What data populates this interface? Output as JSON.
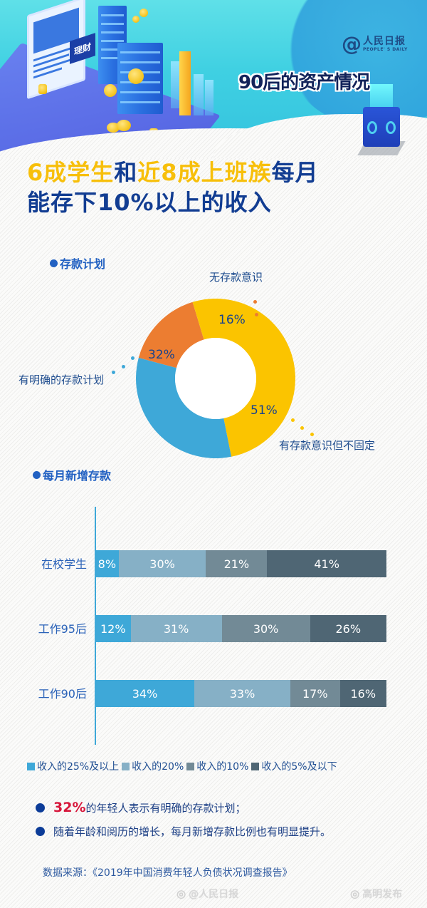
{
  "header": {
    "logo_text_cn": "人民日报",
    "logo_text_en": "PEOPLE' S DAILY",
    "logo_symbol": "@",
    "banner_title": "90后的资产情况",
    "illustration_sign": "理财",
    "colors": {
      "sky": "#3fd0e2",
      "platform": "#5b66e6",
      "title": "#12235a"
    }
  },
  "headline": {
    "line1": [
      {
        "text": "6成学生",
        "color": "yellow"
      },
      {
        "text": "和",
        "color": "blue"
      },
      {
        "text": "近8成上班族",
        "color": "yellow"
      },
      {
        "text": "每月",
        "color": "blue"
      }
    ],
    "line2": "能存下10%以上的收入"
  },
  "sections": {
    "plan_title": "存款计划",
    "monthly_title": "每月新增存款"
  },
  "chart_data": [
    {
      "type": "pie",
      "title": "存款计划",
      "donut": true,
      "categories": [
        "无存款意识",
        "有存款意识但不固定",
        "有明确的存款计划"
      ],
      "values": [
        16,
        51,
        32
      ],
      "labels": [
        "16%",
        "51%",
        "32%"
      ],
      "colors": [
        "#ec7d31",
        "#fbc400",
        "#3ea8d8"
      ]
    },
    {
      "type": "bar",
      "orientation": "horizontal",
      "stacked": true,
      "title": "每月新增存款",
      "categories": [
        "在校学生",
        "工作95后",
        "工作90后"
      ],
      "series": [
        {
          "name": "收入的25%及以上",
          "color": "#3ea8d8",
          "values": [
            8,
            12,
            34
          ]
        },
        {
          "name": "收入的20%",
          "color": "#86b0c6",
          "values": [
            30,
            31,
            33
          ]
        },
        {
          "name": "收入的10%",
          "color": "#728a96",
          "values": [
            21,
            30,
            17
          ]
        },
        {
          "name": "收入的5%及以下",
          "color": "#4f6674",
          "values": [
            41,
            26,
            16
          ]
        }
      ],
      "xlim": [
        0,
        100
      ],
      "legend_position": "bottom"
    }
  ],
  "donut_labels": {
    "top": "无存款意识",
    "left": "有明确的存款计划",
    "right": "有存款意识但不固定"
  },
  "bar_chart": {
    "rows": [
      {
        "label": "在校学生",
        "cells": [
          "8%",
          "30%",
          "21%",
          "41%"
        ]
      },
      {
        "label": "工作95后",
        "cells": [
          "12%",
          "31%",
          "30%",
          "26%"
        ]
      },
      {
        "label": "工作90后",
        "cells": [
          "34%",
          "33%",
          "17%",
          "16%"
        ]
      }
    ],
    "legend": [
      "收入的25%及以上",
      "收入的20%",
      "收入的10%",
      "收入的5%及以下"
    ]
  },
  "notes": [
    {
      "highlight": "32%",
      "text": "的年轻人表示有明确的存款计划；"
    },
    {
      "highlight": "",
      "text": "随着年龄和阅历的增长，每月新增存款比例也有明显提升。"
    }
  ],
  "source": "数据来源：《2019年中国消费年轻人负债状况调查报告》",
  "watermarks": [
    "@人民日报",
    "高明发布"
  ]
}
